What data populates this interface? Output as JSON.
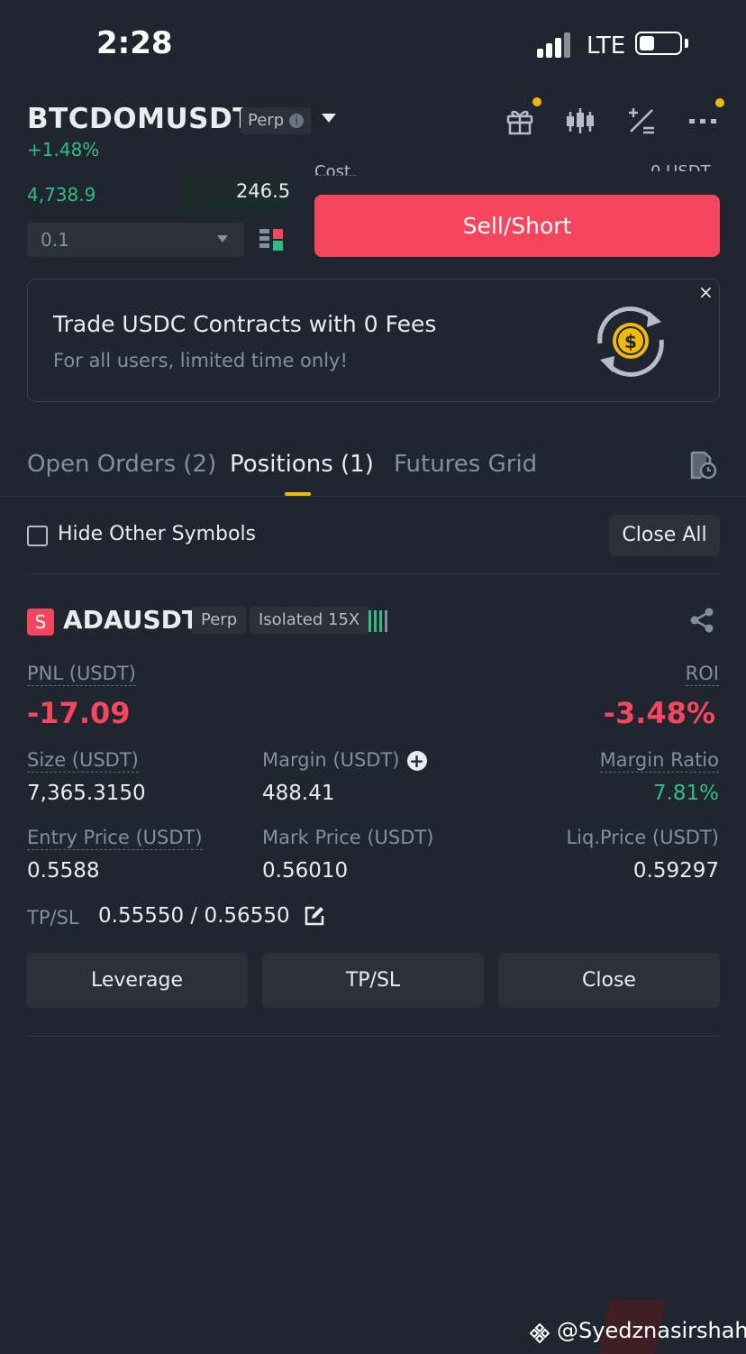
{
  "status_bar": {
    "time": "2:28",
    "network": "LTE",
    "battery_icon": "battery-icon"
  },
  "header": {
    "symbol": "BTCDOMUSDT",
    "contract_type": "Perp",
    "change": "+1.48%",
    "icons": [
      "gift-icon",
      "candlestick-chart-icon",
      "percent-calculator-icon",
      "more-icon"
    ]
  },
  "order_panel": {
    "bid_price": "4,738.9",
    "bid_qty": "246.5",
    "quantity_value": "0.1",
    "sell_button": "Sell/Short"
  },
  "banner": {
    "title": "Trade USDC Contracts with 0 Fees",
    "subtitle": "For all users, limited time only!",
    "close": "×"
  },
  "tabs": [
    {
      "label": "Open Orders (2)",
      "active": false
    },
    {
      "label": "Positions (1)",
      "active": true
    },
    {
      "label": "Futures Grid",
      "active": false
    }
  ],
  "filters": {
    "hide_other_symbols": "Hide Other Symbols",
    "close_all": "Close All"
  },
  "position": {
    "side": "S",
    "symbol": "ADAUSDT",
    "contract_type": "Perp",
    "margin_mode": "Isolated 15X",
    "pnl_label": "PNL (USDT)",
    "pnl_value": "-17.09",
    "roi_label": "ROI",
    "roi_value": "-3.48%",
    "size_label": "Size (USDT)",
    "size_value": "7,365.3150",
    "margin_label": "Margin (USDT)",
    "margin_value": "488.41",
    "margin_ratio_label": "Margin Ratio",
    "margin_ratio_value": "7.81%",
    "entry_price_label": "Entry Price (USDT)",
    "entry_price_value": "0.5588",
    "mark_price_label": "Mark Price (USDT)",
    "mark_price_value": "0.56010",
    "liq_price_label": "Liq.Price (USDT)",
    "liq_price_value": "0.59297",
    "tpsl_label": "TP/SL",
    "tpsl_value": "0.55550 / 0.56550"
  },
  "actions": {
    "leverage": "Leverage",
    "tpsl": "TP/SL",
    "close": "Close"
  },
  "watermark": "@Syedznasirshah",
  "colors": {
    "background": "#1f2630",
    "red": "#f6465d",
    "green": "#2ebd85",
    "yellow": "#f0b90b",
    "panel": "#2b3139"
  }
}
